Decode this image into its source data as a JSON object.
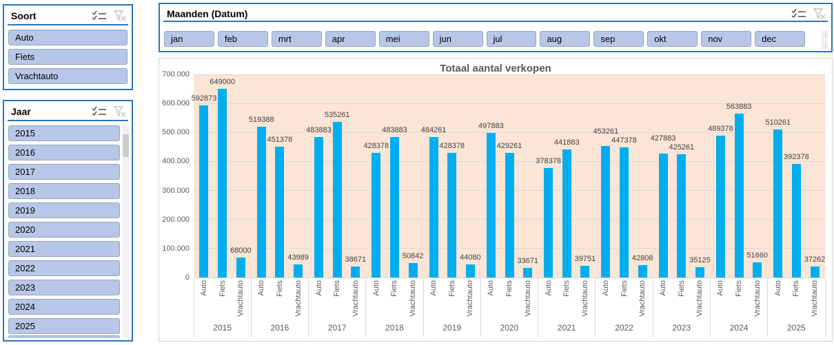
{
  "slicers": {
    "soort": {
      "title": "Soort",
      "items": [
        "Auto",
        "Fiets",
        "Vrachtauto"
      ]
    },
    "jaar": {
      "title": "Jaar",
      "items": [
        "2015",
        "2016",
        "2017",
        "2018",
        "2019",
        "2020",
        "2021",
        "2022",
        "2023",
        "2024",
        "2025"
      ]
    },
    "maanden": {
      "title": "Maanden (Datum)",
      "items": [
        "jan",
        "feb",
        "mrt",
        "apr",
        "mei",
        "jun",
        "jul",
        "aug",
        "sep",
        "okt",
        "nov",
        "dec"
      ]
    }
  },
  "theme": {
    "slicer_border": "#2e75b6",
    "slicer_item_fill": "#b8c7e8",
    "bar_color": "#00aeef",
    "plot_background": "#fbe5d6",
    "text_gray": "#595959"
  },
  "chart_data": {
    "type": "bar",
    "title": "Totaal aantal verkopen",
    "categories": [
      "2015",
      "2016",
      "2017",
      "2018",
      "2019",
      "2020",
      "2021",
      "2022",
      "2023",
      "2024",
      "2025"
    ],
    "sub_categories": [
      "Auto",
      "Fiets",
      "Vrachtauto"
    ],
    "groups": [
      {
        "year": "2015",
        "values": [
          592873,
          649000,
          68000
        ]
      },
      {
        "year": "2016",
        "values": [
          519388,
          451378,
          43989
        ]
      },
      {
        "year": "2017",
        "values": [
          483883,
          535261,
          38671
        ]
      },
      {
        "year": "2018",
        "values": [
          428378,
          483883,
          50842
        ]
      },
      {
        "year": "2019",
        "values": [
          484261,
          428378,
          44080
        ]
      },
      {
        "year": "2020",
        "values": [
          497883,
          429261,
          33671
        ]
      },
      {
        "year": "2021",
        "values": [
          378378,
          441883,
          39751
        ]
      },
      {
        "year": "2022",
        "values": [
          453261,
          447378,
          42808
        ]
      },
      {
        "year": "2023",
        "values": [
          427883,
          425261,
          35125
        ]
      },
      {
        "year": "2024",
        "values": [
          489378,
          563883,
          51660
        ]
      },
      {
        "year": "2025",
        "values": [
          510261,
          392378,
          37262
        ]
      }
    ],
    "ylim": [
      0,
      700000
    ],
    "ytick_step": 100000,
    "ytick_labels": [
      "0",
      "100.000",
      "200.000",
      "300.000",
      "400.000",
      "500.000",
      "600.000",
      "700.000"
    ],
    "data_labels_visible": true,
    "grid": true,
    "legend": "none",
    "bar_color": "#00aeef",
    "plot_bg": "#fbe5d6",
    "gridline_color": "#d9d9d9"
  }
}
